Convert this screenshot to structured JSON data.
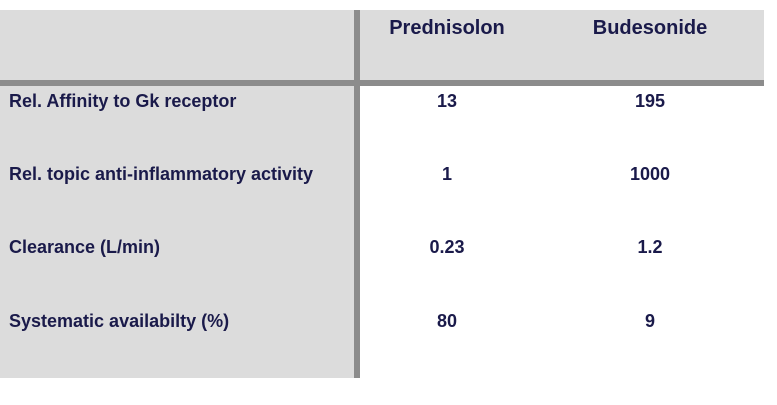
{
  "table": {
    "columns": [
      "",
      "Prednisolon",
      "Budesonide"
    ],
    "rows": [
      {
        "label": "Rel. Affinity to Gk receptor",
        "values": [
          "13",
          "195"
        ]
      },
      {
        "label": "Rel. topic anti-inflammatory activity",
        "values": [
          "1",
          "1000"
        ]
      },
      {
        "label": "Clearance (L/min)",
        "values": [
          "0.23",
          "1.2"
        ]
      },
      {
        "label": "Systematic availabilty (%)",
        "values": [
          "80",
          "9"
        ]
      }
    ]
  }
}
